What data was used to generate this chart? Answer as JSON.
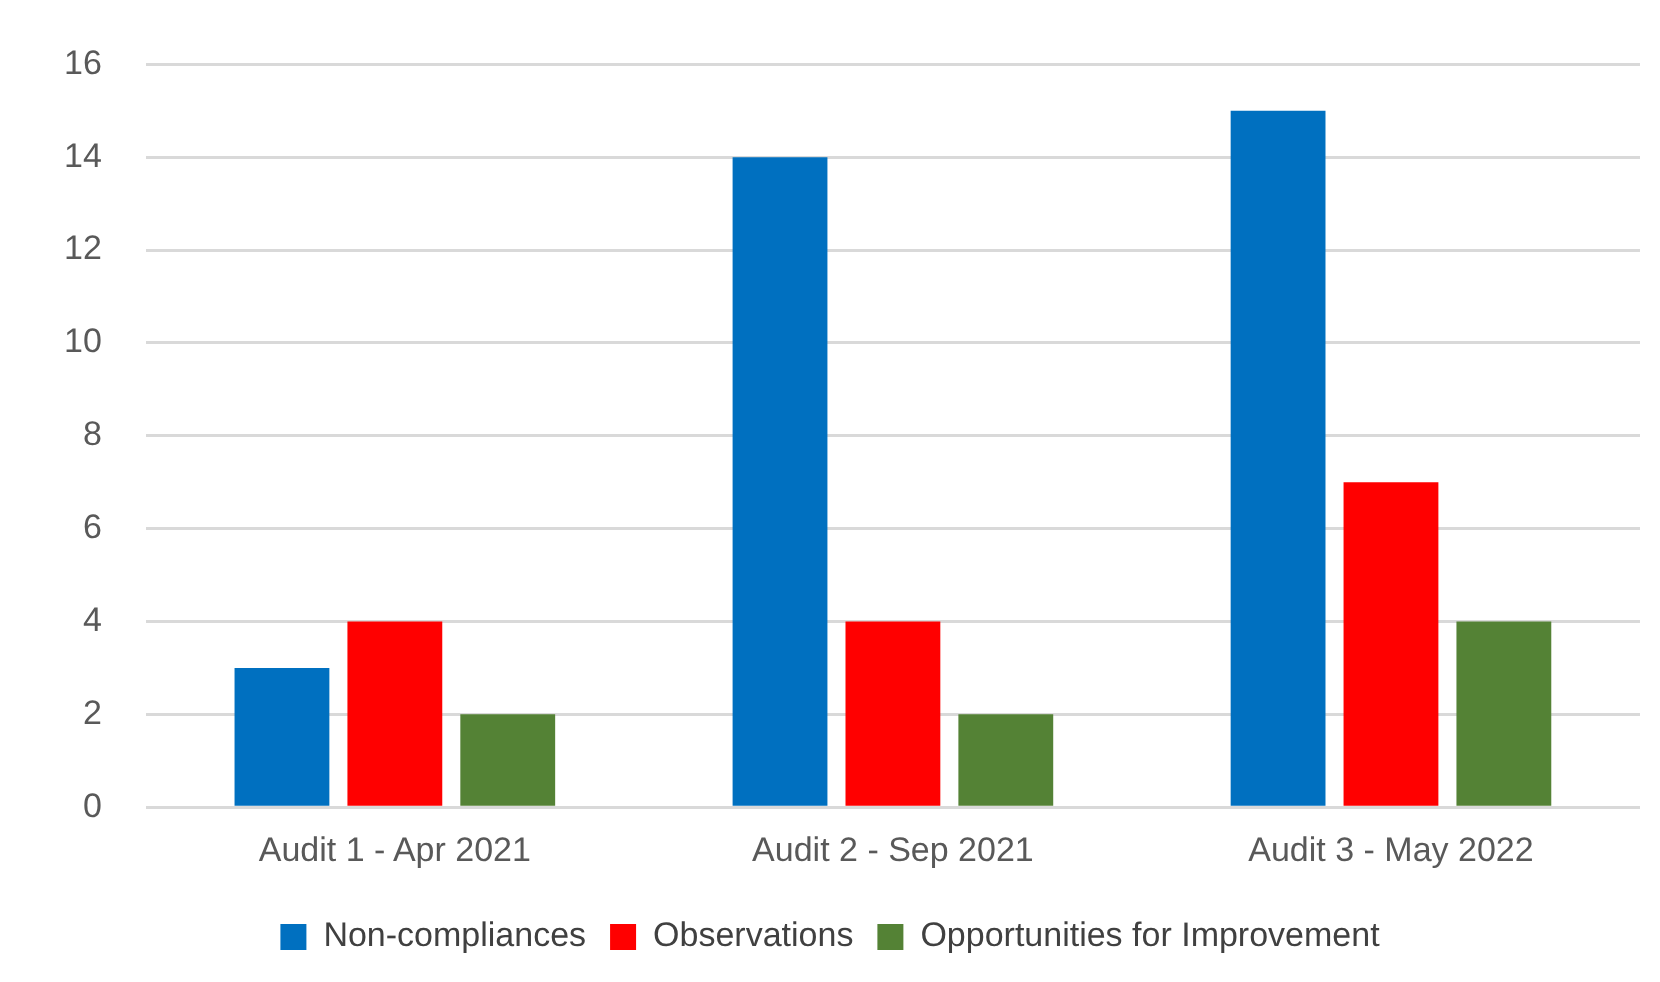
{
  "chart_data": {
    "type": "bar",
    "categories": [
      "Audit 1 - Apr 2021",
      "Audit 2 - Sep 2021",
      "Audit 3 - May 2022"
    ],
    "series": [
      {
        "name": "Non-compliances",
        "color": "#0070c0",
        "values": [
          3,
          14,
          15
        ]
      },
      {
        "name": "Observations",
        "color": "#ff0000",
        "values": [
          4,
          4,
          7
        ]
      },
      {
        "name": "Opportunities for Improvement",
        "color": "#548235",
        "values": [
          2,
          2,
          4
        ]
      }
    ],
    "ylim": [
      0,
      16
    ],
    "yticks": [
      0,
      2,
      4,
      6,
      8,
      10,
      12,
      14,
      16
    ],
    "grid": "y",
    "legend": "bottom"
  }
}
